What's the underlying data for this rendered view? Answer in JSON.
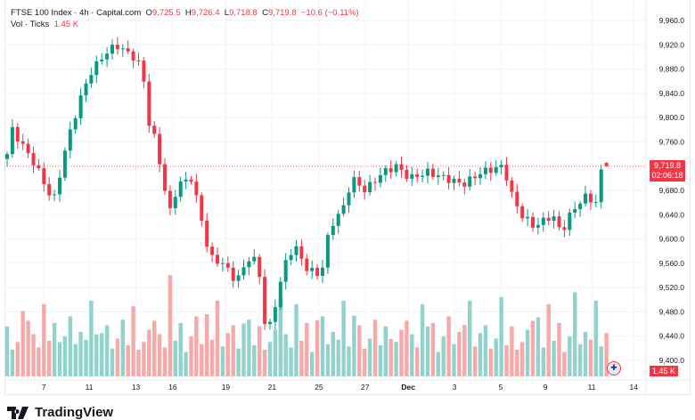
{
  "legend": {
    "symbol": "FTSE 100 Index · 4h · Capital.com",
    "o_label": "O",
    "o": "9,725.5",
    "h_label": "H",
    "h": "9,726.4",
    "l_label": "L",
    "l": "9,718.8",
    "c_label": "C",
    "c": "9,719.8",
    "change": "−10.6 (−0.11%)",
    "vol_label": "Vol · Ticks",
    "vol": "1.45 K"
  },
  "last_price": "9,719.8",
  "countdown": "02:06:18",
  "last_volume": "1.45 K",
  "logo": "TradingView",
  "colors": {
    "up": "#089981",
    "down": "#f23645",
    "vol_up": "#92d2cc",
    "vol_down": "#f7a9a7"
  },
  "chart_data": {
    "type": "candlestick",
    "title": "FTSE 100 Index · 4h · Capital.com",
    "ylim": [
      9400,
      9960
    ],
    "y_ticks": [
      "9,960.0",
      "9,920.0",
      "9,880.0",
      "9,840.0",
      "9,800.0",
      "9,760.0",
      "9,680.0",
      "9,640.0",
      "9,600.0",
      "9,560.0",
      "9,520.0",
      "9,480.0",
      "9,440.0",
      "9,400.0"
    ],
    "y_tick_values": [
      9960,
      9920,
      9880,
      9840,
      9800,
      9760,
      9680,
      9640,
      9600,
      9560,
      9520,
      9480,
      9440,
      9400
    ],
    "x_ticks": [
      {
        "label": "7",
        "bar": 7
      },
      {
        "label": "11",
        "bar": 15.6
      },
      {
        "label": "13",
        "bar": 24.5
      },
      {
        "label": "16",
        "bar": 31.5
      },
      {
        "label": "19",
        "bar": 41.6
      },
      {
        "label": "21",
        "bar": 50.4
      },
      {
        "label": "25",
        "bar": 59.3
      },
      {
        "label": "27",
        "bar": 68.1
      },
      {
        "label": "Dec",
        "bar": 76.3
      },
      {
        "label": "3",
        "bar": 85.1
      },
      {
        "label": "5",
        "bar": 93.9
      },
      {
        "label": "9",
        "bar": 102.4
      },
      {
        "label": "11",
        "bar": 111.2
      },
      {
        "label": "14",
        "bar": 119.2
      }
    ],
    "bars": 115,
    "close_keypoints": [
      [
        0,
        9740
      ],
      [
        1,
        9780
      ],
      [
        5.5,
        9720
      ],
      [
        8.8,
        9660
      ],
      [
        11.4,
        9760
      ],
      [
        13.9,
        9830
      ],
      [
        15.6,
        9870
      ],
      [
        18.1,
        9900
      ],
      [
        20.7,
        9920
      ],
      [
        24,
        9900
      ],
      [
        25.8,
        9880
      ],
      [
        26.6,
        9800
      ],
      [
        28.3,
        9760
      ],
      [
        30,
        9680
      ],
      [
        30.8,
        9640
      ],
      [
        32.5,
        9690
      ],
      [
        35,
        9700
      ],
      [
        36.8,
        9640
      ],
      [
        38.5,
        9570
      ],
      [
        41,
        9560
      ],
      [
        43.6,
        9530
      ],
      [
        46.1,
        9570
      ],
      [
        47.8,
        9560
      ],
      [
        48.6,
        9480
      ],
      [
        49.5,
        9440
      ],
      [
        51.2,
        9500
      ],
      [
        52.9,
        9560
      ],
      [
        54.6,
        9590
      ],
      [
        57.1,
        9550
      ],
      [
        59.7,
        9540
      ],
      [
        61.4,
        9620
      ],
      [
        63.9,
        9650
      ],
      [
        65.6,
        9700
      ],
      [
        68.1,
        9680
      ],
      [
        71.5,
        9710
      ],
      [
        74,
        9720
      ],
      [
        76.6,
        9700
      ],
      [
        80,
        9710
      ],
      [
        83.4,
        9700
      ],
      [
        86.8,
        9690
      ],
      [
        90.2,
        9710
      ],
      [
        94.4,
        9720
      ],
      [
        96.1,
        9670
      ],
      [
        97.8,
        9640
      ],
      [
        100.3,
        9620
      ],
      [
        103.7,
        9640
      ],
      [
        105.4,
        9610
      ],
      [
        107.1,
        9640
      ],
      [
        109.7,
        9670
      ],
      [
        112.2,
        9660
      ],
      [
        113,
        9710
      ],
      [
        114,
        9725.5
      ]
    ],
    "last_bar": {
      "open": 9725.5,
      "high": 9726.4,
      "low": 9718.8,
      "close": 9719.8
    },
    "volume_pattern_k": [
      4.5,
      2.4,
      3.1,
      4.2,
      5.0,
      3.8,
      2.6,
      6.5,
      3.2,
      4.8,
      2.2,
      3.6,
      5.4,
      2.9,
      4.0,
      3.3,
      6.8,
      2.7,
      3.9,
      4.6,
      2.5,
      3.4,
      5.1,
      2.8
    ]
  }
}
